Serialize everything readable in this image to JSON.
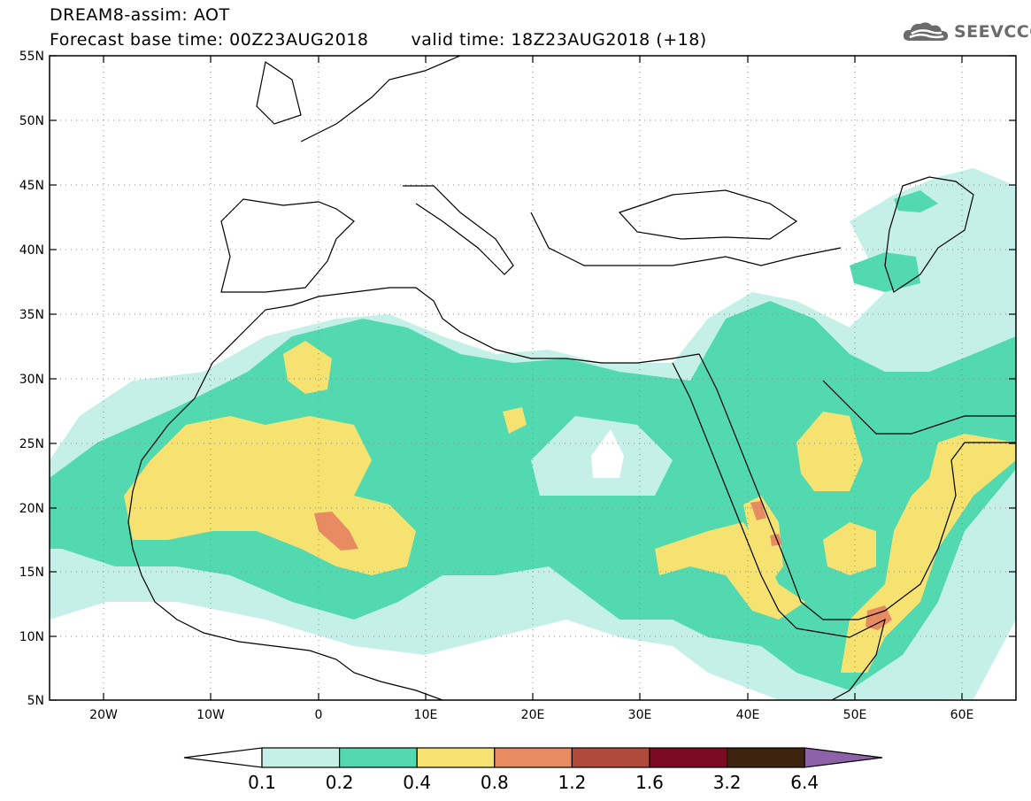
{
  "header": {
    "product": "DREAM8-assim: AOT",
    "base_time": "Forecast base time: 00Z23AUG2018",
    "valid_time": "valid time: 18Z23AUG2018 (+18)",
    "logo_text": "SEEVCCC"
  },
  "map": {
    "lon_range": [
      -25,
      65
    ],
    "lat_range": [
      5,
      55
    ],
    "lat_ticks": [
      "55N",
      "50N",
      "45N",
      "40N",
      "35N",
      "30N",
      "25N",
      "20N",
      "15N",
      "10N",
      "5N"
    ],
    "lon_ticks": [
      "20W",
      "10W",
      "0",
      "10E",
      "20E",
      "30E",
      "40E",
      "50E",
      "60E"
    ]
  },
  "colorbar": {
    "labels": [
      "0.1",
      "0.2",
      "0.4",
      "0.8",
      "1.2",
      "1.6",
      "3.2",
      "6.4"
    ],
    "colors": [
      "#c5f0e8",
      "#52d9b0",
      "#f5e271",
      "#e88a62",
      "#b04a3a",
      "#7d0a24",
      "#3d2410",
      "#8e62a8"
    ]
  }
}
